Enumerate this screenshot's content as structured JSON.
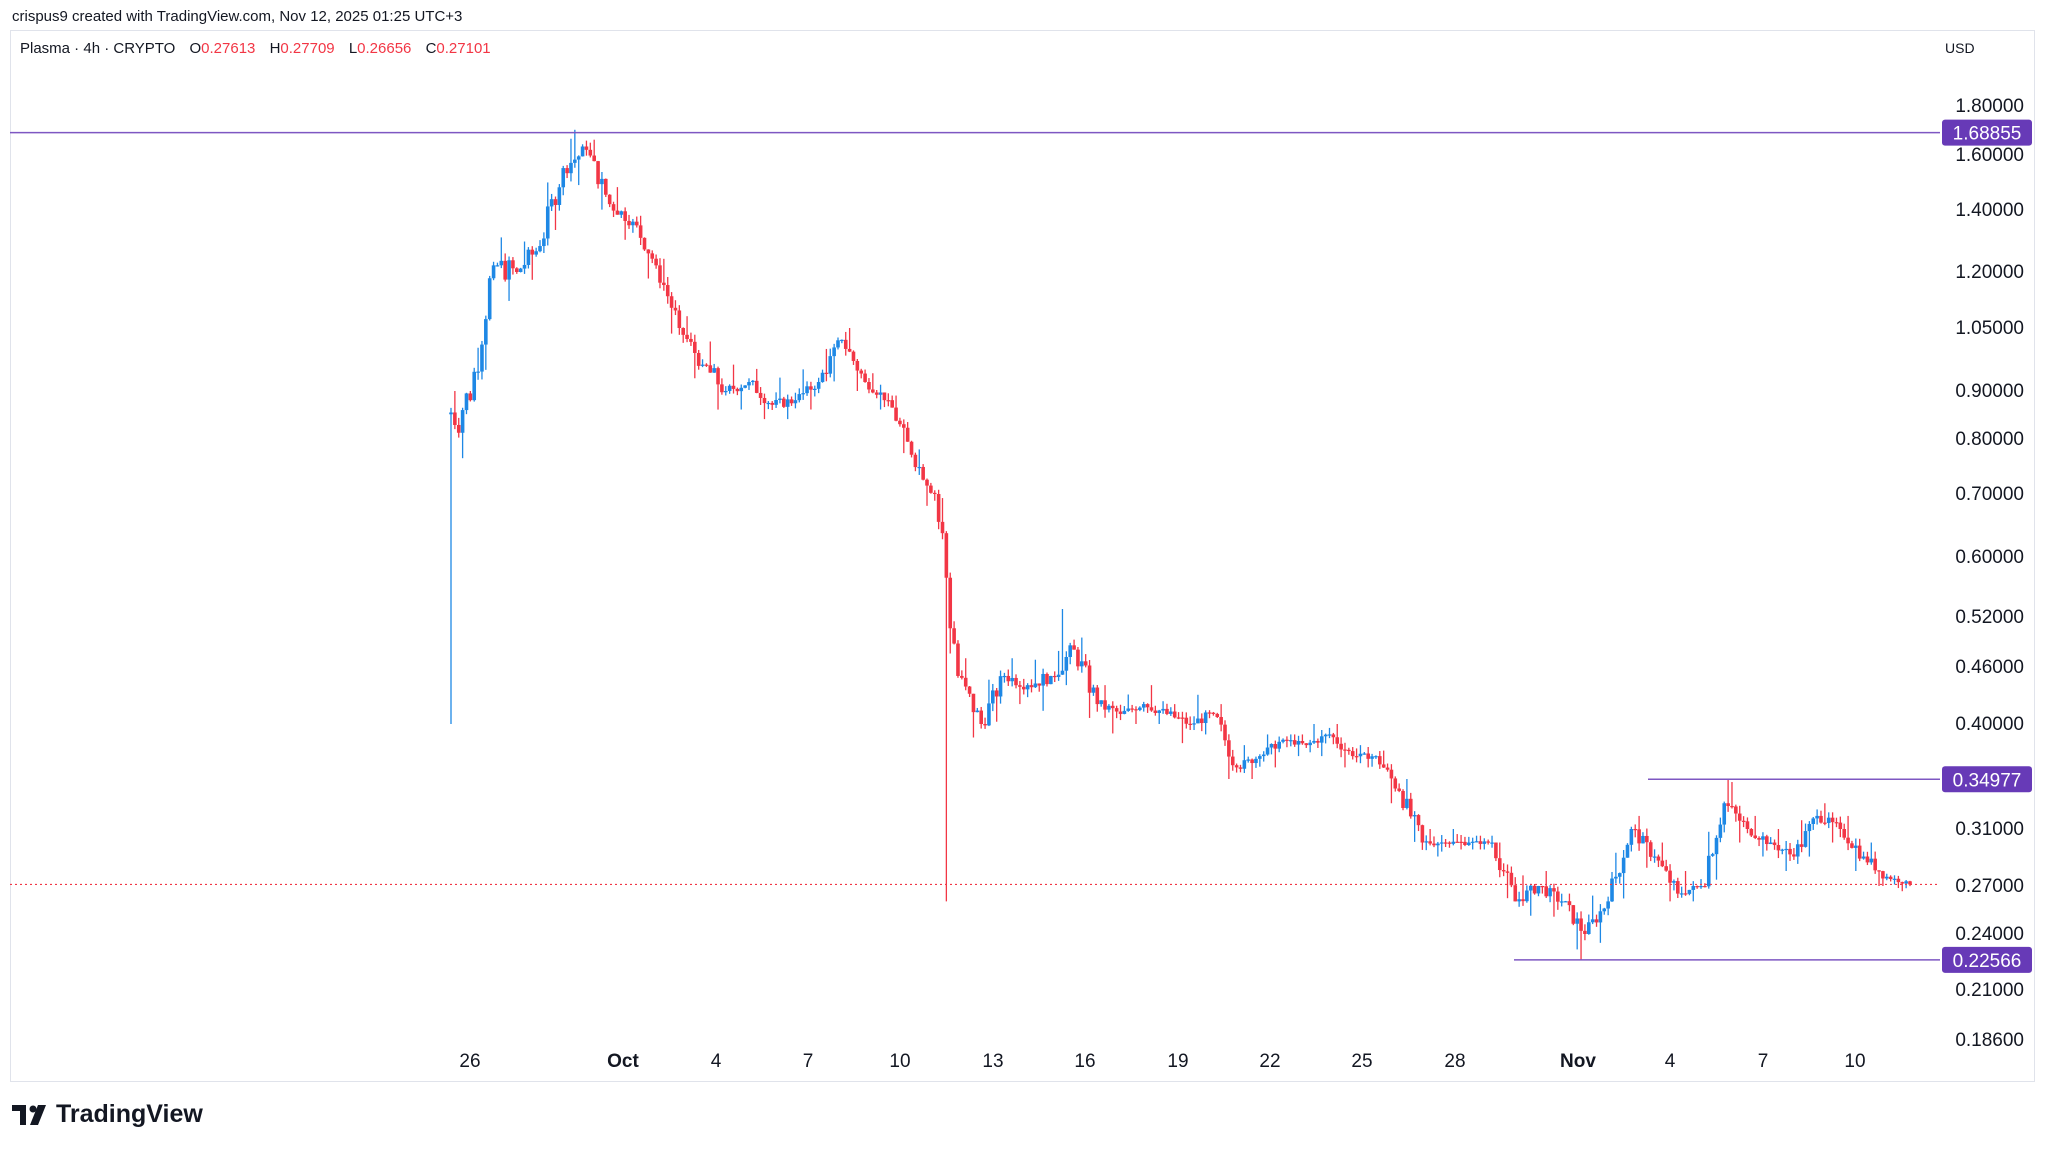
{
  "header": {
    "credit": "crispus9 created with TradingView.com, Nov 12, 2025 01:25 UTC+3"
  },
  "legend": {
    "symbol": "Plasma · 4h · CRYPTO",
    "o_label": "O",
    "o_value": "0.27613",
    "h_label": "H",
    "h_value": "0.27709",
    "l_label": "L",
    "l_value": "0.26656",
    "c_label": "C",
    "c_value": "0.27101"
  },
  "currency": "USD",
  "footer": {
    "brand": "TradingView"
  },
  "colors": {
    "up": "#2962ff",
    "up_candle": "#1e88e5",
    "down": "#f23645",
    "level_line": "#7e57c2",
    "badge_bg": "#673ab7",
    "axis_text": "#131722"
  },
  "chart_data": {
    "type": "candlestick",
    "scale": "log",
    "interval": "4h",
    "x_ticks": [
      "26",
      "Oct",
      "4",
      "7",
      "10",
      "13",
      "16",
      "19",
      "22",
      "25",
      "28",
      "Nov",
      "4",
      "7",
      "10"
    ],
    "y_ticks": [
      "1.80000",
      "1.60000",
      "1.40000",
      "1.20000",
      "1.05000",
      "0.90000",
      "0.80000",
      "0.70000",
      "0.60000",
      "0.52000",
      "0.46000",
      "0.40000",
      "0.31000",
      "0.27000",
      "0.24000",
      "0.21000",
      "0.18600"
    ],
    "horizontal_levels": [
      {
        "value": 1.68855,
        "label": "1.68855"
      },
      {
        "value": 0.34977,
        "label": "0.34977"
      },
      {
        "value": 0.22566,
        "label": "0.22566"
      }
    ],
    "last_price": 0.27101,
    "daily_path": [
      [
        0.85,
        0.9,
        0.4,
        0.88
      ],
      [
        0.88,
        1.3,
        0.86,
        1.22
      ],
      [
        1.22,
        1.42,
        1.12,
        1.2
      ],
      [
        1.2,
        1.35,
        1.1,
        1.28
      ],
      [
        1.28,
        1.6,
        1.24,
        1.55
      ],
      [
        1.55,
        1.7,
        1.45,
        1.62
      ],
      [
        1.62,
        1.66,
        1.38,
        1.42
      ],
      [
        1.42,
        1.48,
        1.3,
        1.36
      ],
      [
        1.36,
        1.38,
        1.18,
        1.22
      ],
      [
        1.22,
        1.25,
        1.02,
        1.05
      ],
      [
        1.05,
        1.08,
        0.92,
        0.96
      ],
      [
        0.96,
        1.04,
        0.85,
        0.9
      ],
      [
        0.9,
        0.96,
        0.86,
        0.92
      ],
      [
        0.92,
        0.95,
        0.84,
        0.87
      ],
      [
        0.87,
        0.93,
        0.84,
        0.88
      ],
      [
        0.88,
        0.95,
        0.86,
        0.92
      ],
      [
        0.92,
        1.06,
        0.9,
        1.02
      ],
      [
        1.02,
        1.05,
        0.9,
        0.92
      ],
      [
        0.92,
        0.94,
        0.86,
        0.88
      ],
      [
        0.88,
        0.89,
        0.75,
        0.77
      ],
      [
        0.77,
        0.78,
        0.68,
        0.7
      ],
      [
        0.7,
        0.71,
        0.26,
        0.45
      ],
      [
        0.45,
        0.47,
        0.38,
        0.4
      ],
      [
        0.4,
        0.47,
        0.39,
        0.45
      ],
      [
        0.45,
        0.47,
        0.42,
        0.44
      ],
      [
        0.44,
        0.47,
        0.41,
        0.45
      ],
      [
        0.45,
        0.53,
        0.44,
        0.48
      ],
      [
        0.48,
        0.5,
        0.4,
        0.42
      ],
      [
        0.42,
        0.44,
        0.39,
        0.41
      ],
      [
        0.41,
        0.43,
        0.4,
        0.42
      ],
      [
        0.42,
        0.44,
        0.4,
        0.41
      ],
      [
        0.41,
        0.42,
        0.38,
        0.4
      ],
      [
        0.4,
        0.43,
        0.39,
        0.41
      ],
      [
        0.41,
        0.42,
        0.35,
        0.36
      ],
      [
        0.36,
        0.38,
        0.35,
        0.37
      ],
      [
        0.37,
        0.39,
        0.36,
        0.385
      ],
      [
        0.385,
        0.39,
        0.37,
        0.38
      ],
      [
        0.38,
        0.4,
        0.37,
        0.39
      ],
      [
        0.39,
        0.4,
        0.36,
        0.37
      ],
      [
        0.37,
        0.38,
        0.36,
        0.37
      ],
      [
        0.37,
        0.375,
        0.33,
        0.34
      ],
      [
        0.34,
        0.35,
        0.29,
        0.3
      ],
      [
        0.3,
        0.31,
        0.29,
        0.3
      ],
      [
        0.3,
        0.31,
        0.295,
        0.3
      ],
      [
        0.3,
        0.305,
        0.295,
        0.3
      ],
      [
        0.3,
        0.3,
        0.25,
        0.26
      ],
      [
        0.26,
        0.28,
        0.25,
        0.27
      ],
      [
        0.27,
        0.28,
        0.25,
        0.26
      ],
      [
        0.26,
        0.265,
        0.22566,
        0.24
      ],
      [
        0.24,
        0.27,
        0.235,
        0.26
      ],
      [
        0.26,
        0.32,
        0.255,
        0.31
      ],
      [
        0.31,
        0.32,
        0.28,
        0.29
      ],
      [
        0.29,
        0.3,
        0.26,
        0.265
      ],
      [
        0.265,
        0.28,
        0.26,
        0.27
      ],
      [
        0.27,
        0.35,
        0.265,
        0.33
      ],
      [
        0.33,
        0.34977,
        0.3,
        0.31
      ],
      [
        0.31,
        0.32,
        0.29,
        0.3
      ],
      [
        0.3,
        0.31,
        0.28,
        0.29
      ],
      [
        0.29,
        0.33,
        0.28,
        0.32
      ],
      [
        0.32,
        0.33,
        0.3,
        0.31
      ],
      [
        0.31,
        0.32,
        0.28,
        0.29
      ],
      [
        0.29,
        0.3,
        0.27,
        0.27613
      ],
      [
        0.27613,
        0.27709,
        0.26656,
        0.27101
      ]
    ]
  }
}
